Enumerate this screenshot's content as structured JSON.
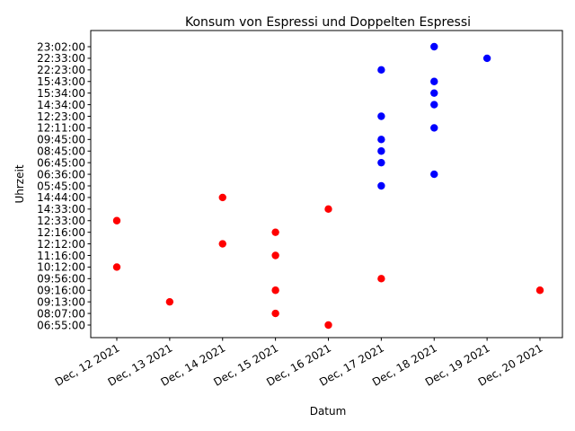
{
  "chart_data": {
    "type": "scatter",
    "title": "Konsum von Espressi und Doppelten Espressi",
    "xlabel": "Datum",
    "ylabel": "Uhrzeit",
    "x_categories": [
      "Dec, 12 2021",
      "Dec, 13 2021",
      "Dec, 14 2021",
      "Dec, 15 2021",
      "Dec, 16 2021",
      "Dec, 17 2021",
      "Dec, 18 2021",
      "Dec, 19 2021",
      "Dec, 20 2021"
    ],
    "y_categories": [
      "06:55:00",
      "08:07:00",
      "09:13:00",
      "09:16:00",
      "09:56:00",
      "10:12:00",
      "11:16:00",
      "12:12:00",
      "12:16:00",
      "12:33:00",
      "14:33:00",
      "14:44:00",
      "05:45:00",
      "06:36:00",
      "06:45:00",
      "08:45:00",
      "09:45:00",
      "12:11:00",
      "12:23:00",
      "14:34:00",
      "15:34:00",
      "15:43:00",
      "22:23:00",
      "22:33:00",
      "23:02:00"
    ],
    "grid": false,
    "series": [
      {
        "color": "#ff0000",
        "points": [
          {
            "x": "Dec, 12 2021",
            "y": "12:33:00"
          },
          {
            "x": "Dec, 12 2021",
            "y": "10:12:00"
          },
          {
            "x": "Dec, 13 2021",
            "y": "09:13:00"
          },
          {
            "x": "Dec, 14 2021",
            "y": "14:44:00"
          },
          {
            "x": "Dec, 14 2021",
            "y": "12:12:00"
          },
          {
            "x": "Dec, 15 2021",
            "y": "12:16:00"
          },
          {
            "x": "Dec, 15 2021",
            "y": "11:16:00"
          },
          {
            "x": "Dec, 15 2021",
            "y": "09:16:00"
          },
          {
            "x": "Dec, 15 2021",
            "y": "08:07:00"
          },
          {
            "x": "Dec, 16 2021",
            "y": "14:33:00"
          },
          {
            "x": "Dec, 16 2021",
            "y": "06:55:00"
          },
          {
            "x": "Dec, 17 2021",
            "y": "09:56:00"
          },
          {
            "x": "Dec, 20 2021",
            "y": "09:16:00"
          }
        ]
      },
      {
        "color": "#0000ff",
        "points": [
          {
            "x": "Dec, 17 2021",
            "y": "22:23:00"
          },
          {
            "x": "Dec, 17 2021",
            "y": "12:23:00"
          },
          {
            "x": "Dec, 17 2021",
            "y": "09:45:00"
          },
          {
            "x": "Dec, 17 2021",
            "y": "08:45:00"
          },
          {
            "x": "Dec, 17 2021",
            "y": "06:45:00"
          },
          {
            "x": "Dec, 17 2021",
            "y": "05:45:00"
          },
          {
            "x": "Dec, 18 2021",
            "y": "23:02:00"
          },
          {
            "x": "Dec, 18 2021",
            "y": "15:43:00"
          },
          {
            "x": "Dec, 18 2021",
            "y": "15:34:00"
          },
          {
            "x": "Dec, 18 2021",
            "y": "14:34:00"
          },
          {
            "x": "Dec, 18 2021",
            "y": "12:11:00"
          },
          {
            "x": "Dec, 18 2021",
            "y": "06:36:00"
          },
          {
            "x": "Dec, 19 2021",
            "y": "22:33:00"
          }
        ]
      }
    ]
  }
}
